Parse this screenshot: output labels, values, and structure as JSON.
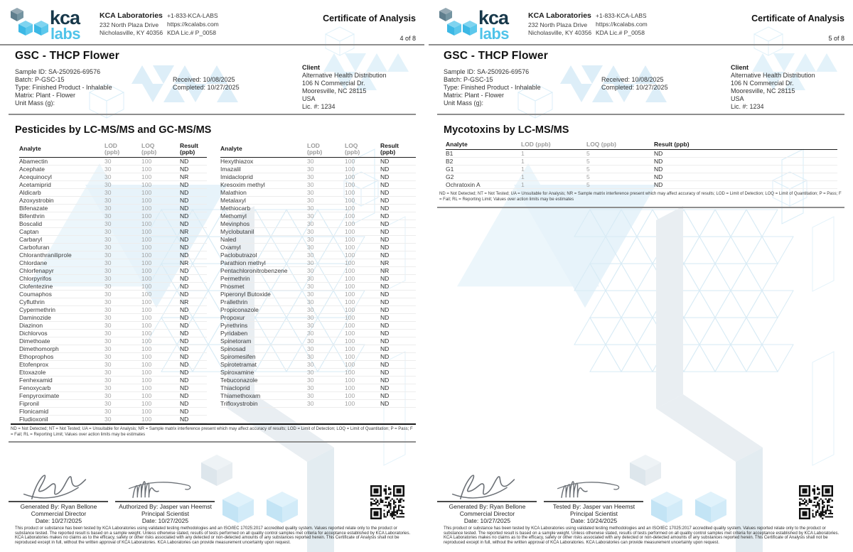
{
  "brand": {
    "logo_kca": "kca",
    "logo_labs": "labs",
    "navy": "#17384a",
    "light_blue": "#4ec3e9",
    "logo_icon": "three-cubes-icon"
  },
  "header": {
    "company": "KCA Laboratories",
    "address1": "232 North Plaza Drive",
    "address2": "Nicholasville, KY 40356",
    "phone": "+1-833-KCA-LABS",
    "website": "https://kcalabs.com",
    "license": "KDA Lic.# P_0058",
    "doc_title": "Certificate of Analysis"
  },
  "product": {
    "title": "GSC - THCP Flower",
    "sample_id": "Sample ID: SA-250926-69576",
    "batch": "Batch: P-GSC-15",
    "type": "Type: Finished Product - Inhalable",
    "matrix": "Matrix: Plant - Flower",
    "unit_mass": "Unit Mass (g):",
    "received": "Received: 10/08/2025",
    "completed": "Completed: 10/27/2025",
    "client_label": "Client",
    "client_name": "Alternative Health Distribution",
    "client_addr1": "106 N Commercial Dr.",
    "client_addr2": "Mooresville, NC 28115",
    "client_country": "USA",
    "client_lic": "Lic. #: 1234"
  },
  "footnote": "ND = Not Detected; NT = Not Tested; UA = Unsuitable for Analysis; NR = Sample matrix interference present which may affect accuracy of results; LOD = Limit of Detection; LOQ = Limit of Quantitation; P = Pass; F = Fail; RL = Reporting Limit; Values over action limits may be estimates",
  "disclaimer": "This product or substance has been tested by KCA Laboratories using validated testing methodologies and an ISO/IEC 17025:2017 accredited quality system. Values reported relate only to the product or substance tested. The reported result is based on a sample weight. Unless otherwise stated, results of tests performed on all quality control samples met criteria for acceptance established by KCA Laboratories. KCA Laboratories makes no claims as to the efficacy, safety or other risks associated with any detected or non-detected amounts of any substances reported herein. This Certificate of Analysis shall not be reproduced except in full, without the written approval of KCA Laboratories. KCA Laboratories can provide measurement uncertainty upon request.",
  "pages": [
    {
      "page_num": "4 of 8",
      "section_title": "Pesticides by LC-MS/MS and GC-MS/MS",
      "signatures": [
        {
          "role_line": "Generated By: Ryan Bellone",
          "title_line": "Commercial Director",
          "date_line": "Date: 10/27/2025"
        },
        {
          "role_line": "Authorized By: Jasper van Heemst",
          "title_line": "Principal Scientist",
          "date_line": "Date: 10/27/2025"
        }
      ]
    },
    {
      "page_num": "5 of 8",
      "section_title": "Mycotoxins by LC-MS/MS",
      "signatures": [
        {
          "role_line": "Generated By: Ryan Bellone",
          "title_line": "Commercial Director",
          "date_line": "Date: 10/27/2025"
        },
        {
          "role_line": "Tested By: Jasper van Heemst",
          "title_line": "Principal Scientist",
          "date_line": "Date: 10/24/2025"
        }
      ]
    }
  ],
  "pesticides": {
    "col_headers": {
      "analyte": "Analyte",
      "lod": "LOD",
      "loq": "LOQ",
      "result": "Result",
      "unit": "(ppb)"
    },
    "left_rows": [
      {
        "analyte": "Abamectin",
        "lod": "30",
        "loq": "100",
        "result": "ND"
      },
      {
        "analyte": "Acephate",
        "lod": "30",
        "loq": "100",
        "result": "ND"
      },
      {
        "analyte": "Acequinocyl",
        "lod": "30",
        "loq": "100",
        "result": "NR"
      },
      {
        "analyte": "Acetamiprid",
        "lod": "30",
        "loq": "100",
        "result": "ND"
      },
      {
        "analyte": "Aldicarb",
        "lod": "30",
        "loq": "100",
        "result": "ND"
      },
      {
        "analyte": "Azoxystrobin",
        "lod": "30",
        "loq": "100",
        "result": "ND"
      },
      {
        "analyte": "Bifenazate",
        "lod": "30",
        "loq": "100",
        "result": "ND"
      },
      {
        "analyte": "Bifenthrin",
        "lod": "30",
        "loq": "100",
        "result": "ND"
      },
      {
        "analyte": "Boscalid",
        "lod": "30",
        "loq": "100",
        "result": "ND"
      },
      {
        "analyte": "Captan",
        "lod": "30",
        "loq": "100",
        "result": "NR"
      },
      {
        "analyte": "Carbaryl",
        "lod": "30",
        "loq": "100",
        "result": "ND"
      },
      {
        "analyte": "Carbofuran",
        "lod": "30",
        "loq": "100",
        "result": "ND"
      },
      {
        "analyte": "Chloranthraniliprole",
        "lod": "30",
        "loq": "100",
        "result": "ND"
      },
      {
        "analyte": "Chlordane",
        "lod": "30",
        "loq": "100",
        "result": "NR"
      },
      {
        "analyte": "Chlorfenapyr",
        "lod": "30",
        "loq": "100",
        "result": "ND"
      },
      {
        "analyte": "Chlorpyrifos",
        "lod": "30",
        "loq": "100",
        "result": "ND"
      },
      {
        "analyte": "Clofentezine",
        "lod": "30",
        "loq": "100",
        "result": "ND"
      },
      {
        "analyte": "Coumaphos",
        "lod": "30",
        "loq": "100",
        "result": "ND"
      },
      {
        "analyte": "Cyfluthrin",
        "lod": "30",
        "loq": "100",
        "result": "NR"
      },
      {
        "analyte": "Cypermethrin",
        "lod": "30",
        "loq": "100",
        "result": "ND"
      },
      {
        "analyte": "Daminozide",
        "lod": "30",
        "loq": "100",
        "result": "ND"
      },
      {
        "analyte": "Diazinon",
        "lod": "30",
        "loq": "100",
        "result": "ND"
      },
      {
        "analyte": "Dichlorvos",
        "lod": "30",
        "loq": "100",
        "result": "ND"
      },
      {
        "analyte": "Dimethoate",
        "lod": "30",
        "loq": "100",
        "result": "ND"
      },
      {
        "analyte": "Dimethomorph",
        "lod": "30",
        "loq": "100",
        "result": "ND"
      },
      {
        "analyte": "Ethoprophos",
        "lod": "30",
        "loq": "100",
        "result": "ND"
      },
      {
        "analyte": "Etofenprox",
        "lod": "30",
        "loq": "100",
        "result": "ND"
      },
      {
        "analyte": "Etoxazole",
        "lod": "30",
        "loq": "100",
        "result": "ND"
      },
      {
        "analyte": "Fenhexamid",
        "lod": "30",
        "loq": "100",
        "result": "ND"
      },
      {
        "analyte": "Fenoxycarb",
        "lod": "30",
        "loq": "100",
        "result": "ND"
      },
      {
        "analyte": "Fenpyroximate",
        "lod": "30",
        "loq": "100",
        "result": "ND"
      },
      {
        "analyte": "Fipronil",
        "lod": "30",
        "loq": "100",
        "result": "ND"
      },
      {
        "analyte": "Flonicamid",
        "lod": "30",
        "loq": "100",
        "result": "ND"
      },
      {
        "analyte": "Fludioxonil",
        "lod": "30",
        "loq": "100",
        "result": "ND"
      }
    ],
    "right_rows": [
      {
        "analyte": "Hexythiazox",
        "lod": "30",
        "loq": "100",
        "result": "ND"
      },
      {
        "analyte": "Imazalil",
        "lod": "30",
        "loq": "100",
        "result": "ND"
      },
      {
        "analyte": "Imidacloprid",
        "lod": "30",
        "loq": "100",
        "result": "ND"
      },
      {
        "analyte": "Kresoxim methyl",
        "lod": "30",
        "loq": "100",
        "result": "ND"
      },
      {
        "analyte": "Malathion",
        "lod": "30",
        "loq": "100",
        "result": "ND"
      },
      {
        "analyte": "Metalaxyl",
        "lod": "30",
        "loq": "100",
        "result": "ND"
      },
      {
        "analyte": "Methiocarb",
        "lod": "30",
        "loq": "100",
        "result": "ND"
      },
      {
        "analyte": "Methomyl",
        "lod": "30",
        "loq": "100",
        "result": "ND"
      },
      {
        "analyte": "Mevinphos",
        "lod": "30",
        "loq": "100",
        "result": "ND"
      },
      {
        "analyte": "Myclobutanil",
        "lod": "30",
        "loq": "100",
        "result": "ND"
      },
      {
        "analyte": "Naled",
        "lod": "30",
        "loq": "100",
        "result": "ND"
      },
      {
        "analyte": "Oxamyl",
        "lod": "30",
        "loq": "100",
        "result": "ND"
      },
      {
        "analyte": "Paclobutrazol",
        "lod": "30",
        "loq": "100",
        "result": "ND"
      },
      {
        "analyte": "Parathion methyl",
        "lod": "30",
        "loq": "100",
        "result": "NR"
      },
      {
        "analyte": "Pentachloronitrobenzene",
        "lod": "30",
        "loq": "100",
        "result": "NR"
      },
      {
        "analyte": "Permethrin",
        "lod": "30",
        "loq": "100",
        "result": "ND"
      },
      {
        "analyte": "Phosmet",
        "lod": "30",
        "loq": "100",
        "result": "ND"
      },
      {
        "analyte": "Piperonyl Butoxide",
        "lod": "30",
        "loq": "100",
        "result": "ND"
      },
      {
        "analyte": "Prallethrin",
        "lod": "30",
        "loq": "100",
        "result": "ND"
      },
      {
        "analyte": "Propiconazole",
        "lod": "30",
        "loq": "100",
        "result": "ND"
      },
      {
        "analyte": "Propoxur",
        "lod": "30",
        "loq": "100",
        "result": "ND"
      },
      {
        "analyte": "Pyrethrins",
        "lod": "30",
        "loq": "100",
        "result": "ND"
      },
      {
        "analyte": "Pyridaben",
        "lod": "30",
        "loq": "100",
        "result": "ND"
      },
      {
        "analyte": "Spinetoram",
        "lod": "30",
        "loq": "100",
        "result": "ND"
      },
      {
        "analyte": "Spinosad",
        "lod": "30",
        "loq": "100",
        "result": "ND"
      },
      {
        "analyte": "Spiromesifen",
        "lod": "30",
        "loq": "100",
        "result": "ND"
      },
      {
        "analyte": "Spirotetramat",
        "lod": "30",
        "loq": "100",
        "result": "ND"
      },
      {
        "analyte": "Spiroxamine",
        "lod": "30",
        "loq": "100",
        "result": "ND"
      },
      {
        "analyte": "Tebuconazole",
        "lod": "30",
        "loq": "100",
        "result": "ND"
      },
      {
        "analyte": "Thiacloprid",
        "lod": "30",
        "loq": "100",
        "result": "ND"
      },
      {
        "analyte": "Thiamethoxam",
        "lod": "30",
        "loq": "100",
        "result": "ND"
      },
      {
        "analyte": "Trifloxystrobin",
        "lod": "30",
        "loq": "100",
        "result": "ND"
      }
    ]
  },
  "mycotoxins": {
    "col_headers": {
      "analyte": "Analyte",
      "lod": "LOD (ppb)",
      "loq": "LOQ (ppb)",
      "result": "Result (ppb)"
    },
    "rows": [
      {
        "analyte": "B1",
        "lod": "1",
        "loq": "5",
        "result": "ND"
      },
      {
        "analyte": "B2",
        "lod": "1",
        "loq": "5",
        "result": "ND"
      },
      {
        "analyte": "G1",
        "lod": "1",
        "loq": "5",
        "result": "ND"
      },
      {
        "analyte": "G2",
        "lod": "1",
        "loq": "5",
        "result": "ND"
      },
      {
        "analyte": "Ochratoxin A",
        "lod": "1",
        "loq": "5",
        "result": "ND"
      }
    ]
  }
}
